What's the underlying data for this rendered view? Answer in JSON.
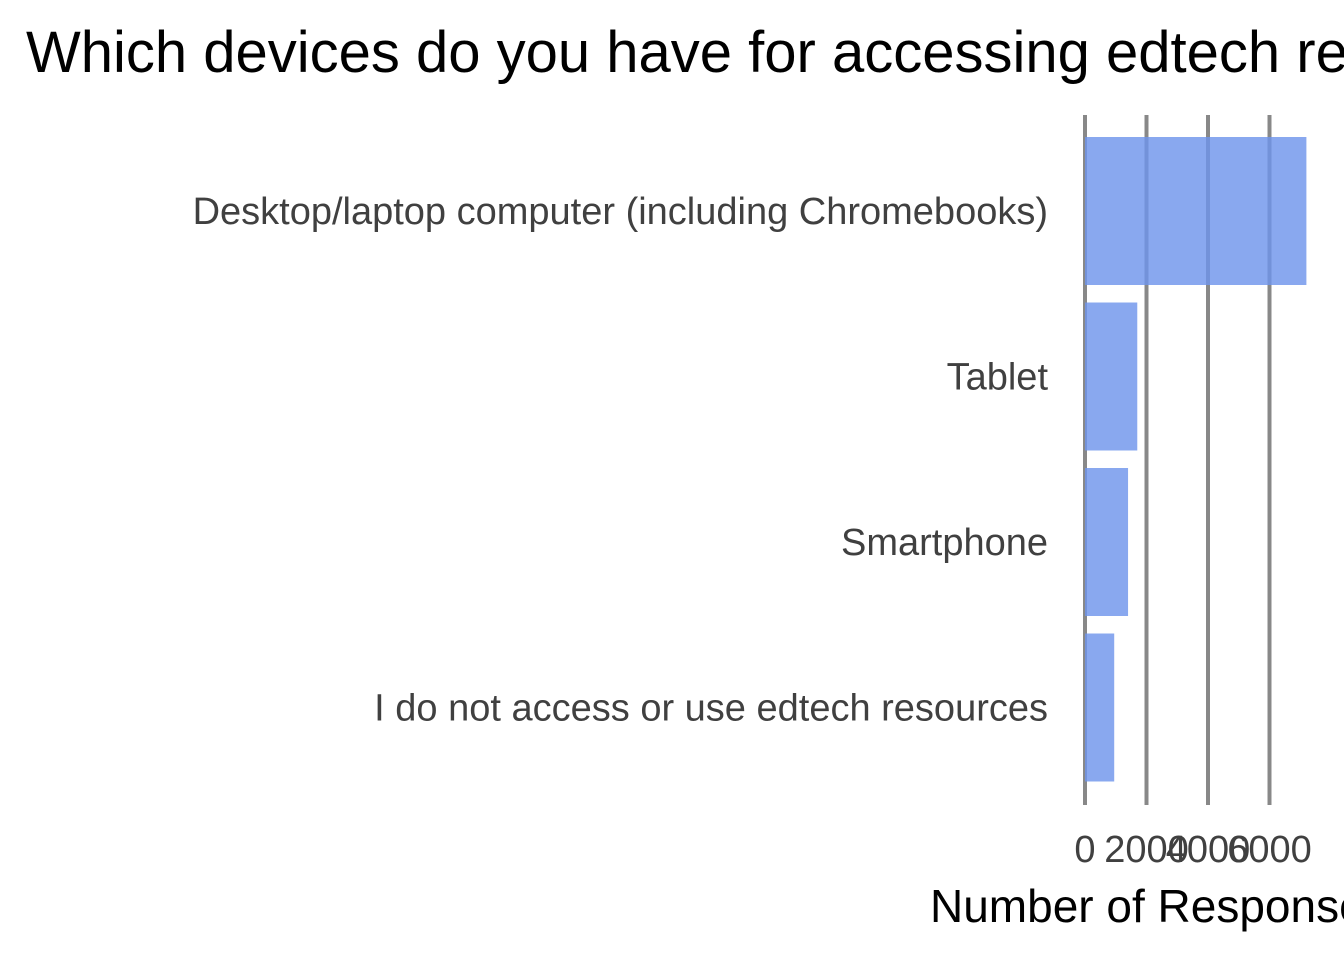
{
  "chart_data": {
    "type": "bar",
    "orientation": "horizontal",
    "title": "Which devices do you have for accessing edtech resources?",
    "xlabel": "Number of Responses",
    "ylabel": "",
    "categories": [
      "Desktop/laptop computer (including Chromebooks)",
      "Tablet",
      "Smartphone",
      "I do not access or use edtech resources"
    ],
    "values": [
      7200,
      1700,
      1400,
      950
    ],
    "xlim": [
      0,
      7200
    ],
    "xticks": [
      0,
      2000,
      4000,
      6000
    ],
    "xtick_labels": [
      "0",
      "2000",
      "4000",
      "6000"
    ],
    "grid": "vertical",
    "bar_color": "#6f95eb",
    "bar_opacity": 0.82,
    "grid_color": "#888888"
  }
}
